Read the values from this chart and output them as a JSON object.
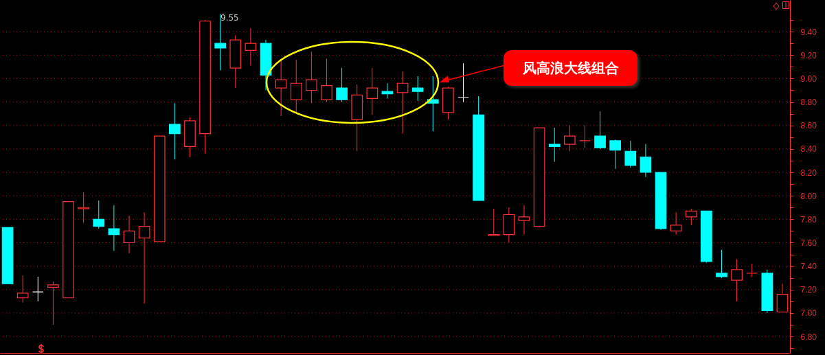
{
  "chart_data": {
    "type": "candlestick",
    "categories": [
      null,
      null,
      null,
      null,
      null,
      null,
      null,
      null,
      null,
      null,
      null,
      null,
      null,
      null,
      null,
      null,
      null,
      null,
      null,
      null,
      null,
      null,
      null,
      null,
      null,
      null,
      null,
      null,
      null,
      null,
      null,
      null,
      null,
      null,
      null,
      null,
      null,
      null,
      null,
      null,
      null,
      null,
      null,
      null,
      null,
      null,
      null,
      null,
      null,
      null,
      null,
      null
    ],
    "ohlc": [
      [
        7.73,
        7.73,
        7.25,
        7.25
      ],
      [
        7.13,
        7.32,
        7.09,
        7.17
      ],
      [
        7.18,
        7.31,
        7.1,
        7.18
      ],
      [
        7.22,
        7.27,
        6.9,
        7.24
      ],
      [
        7.13,
        7.95,
        7.13,
        7.95
      ],
      [
        7.89,
        8.03,
        7.77,
        7.9
      ],
      [
        7.8,
        7.96,
        7.72,
        7.74
      ],
      [
        7.72,
        7.92,
        7.53,
        7.67
      ],
      [
        7.6,
        7.83,
        7.51,
        7.7
      ],
      [
        7.64,
        7.86,
        7.08,
        7.74
      ],
      [
        7.61,
        8.51,
        7.61,
        8.51
      ],
      [
        8.61,
        8.79,
        8.31,
        8.53
      ],
      [
        8.42,
        8.67,
        8.33,
        8.64
      ],
      [
        8.53,
        9.5,
        8.36,
        9.49
      ],
      [
        9.3,
        9.55,
        9.07,
        9.26
      ],
      [
        9.09,
        9.37,
        8.92,
        9.33
      ],
      [
        9.24,
        9.43,
        9.11,
        9.3
      ],
      [
        9.3,
        9.33,
        8.9,
        9.03
      ],
      [
        8.92,
        9.16,
        8.68,
        8.99
      ],
      [
        8.82,
        9.16,
        8.71,
        8.96
      ],
      [
        8.9,
        9.23,
        8.79,
        8.99
      ],
      [
        8.82,
        9.17,
        8.8,
        8.94
      ],
      [
        8.92,
        9.09,
        8.8,
        8.82
      ],
      [
        8.65,
        8.95,
        8.38,
        8.86
      ],
      [
        8.83,
        9.09,
        8.69,
        8.92
      ],
      [
        8.89,
        8.96,
        8.83,
        8.87
      ],
      [
        8.88,
        9.06,
        8.53,
        8.96
      ],
      [
        8.92,
        9.02,
        8.81,
        8.89
      ],
      [
        8.82,
        9.02,
        8.55,
        8.79
      ],
      [
        8.71,
        8.93,
        8.65,
        8.92
      ],
      [
        8.84,
        9.13,
        8.8,
        8.84
      ],
      [
        8.69,
        8.85,
        7.96,
        7.96
      ],
      [
        7.66,
        7.89,
        7.66,
        7.67
      ],
      [
        7.67,
        7.9,
        7.6,
        7.84
      ],
      [
        7.79,
        7.92,
        7.67,
        7.82
      ],
      [
        7.74,
        8.58,
        7.73,
        8.58
      ],
      [
        8.44,
        8.58,
        8.29,
        8.42
      ],
      [
        8.44,
        8.6,
        8.38,
        8.51
      ],
      [
        8.47,
        8.6,
        8.41,
        8.47
      ],
      [
        8.51,
        8.72,
        8.4,
        8.41
      ],
      [
        8.47,
        8.48,
        8.23,
        8.39
      ],
      [
        8.38,
        8.47,
        8.24,
        8.26
      ],
      [
        8.33,
        8.44,
        8.16,
        8.2
      ],
      [
        8.2,
        8.2,
        7.71,
        7.72
      ],
      [
        7.7,
        7.86,
        7.67,
        7.75
      ],
      [
        7.82,
        7.89,
        7.75,
        7.87
      ],
      [
        7.87,
        7.87,
        7.43,
        7.44
      ],
      [
        7.34,
        7.54,
        7.3,
        7.31
      ],
      [
        7.28,
        7.46,
        7.1,
        7.37
      ],
      [
        7.34,
        7.42,
        7.31,
        7.34
      ],
      [
        7.34,
        7.37,
        7.0,
        7.02
      ],
      [
        7.01,
        7.25,
        7.01,
        7.16
      ]
    ],
    "colors": [
      "#00ffff",
      "#ff3232",
      "#ffffff",
      "#ff3232",
      "#ff3232",
      "#ff3232",
      "#00ffff",
      "#00ffff",
      "#ff3232",
      "#ff3232",
      "#ff3232",
      "#00ffff",
      "#ff3232",
      "#ff3232",
      "#00ffff",
      "#ff3232",
      "#ff3232",
      "#00ffff",
      "#ff3232",
      "#ff3232",
      "#ff3232",
      "#ff3232",
      "#00ffff",
      "#ff3232",
      "#ff3232",
      "#00ffff",
      "#ff3232",
      "#00ffff",
      "#00ffff",
      "#ff3232",
      "#ffffff",
      "#00ffff",
      "#ff3232",
      "#ff3232",
      "#ff3232",
      "#ff3232",
      "#00ffff",
      "#ff3232",
      "#ff3232",
      "#00ffff",
      "#00ffff",
      "#00ffff",
      "#00ffff",
      "#00ffff",
      "#ff3232",
      "#ff3232",
      "#00ffff",
      "#00ffff",
      "#ff3232",
      "#ff3232",
      "#00ffff",
      "#ff3232"
    ],
    "ylim": [
      6.66,
      9.67
    ],
    "yticks": [
      {
        "value": 6.7,
        "label": null
      },
      {
        "value": 6.8,
        "label": "6.80"
      },
      {
        "value": 6.9,
        "label": null
      },
      {
        "value": 7,
        "label": "7.00"
      },
      {
        "value": 7.1,
        "label": null
      },
      {
        "value": 7.2,
        "label": "7.20"
      },
      {
        "value": 7.3,
        "label": null
      },
      {
        "value": 7.4,
        "label": "7.40"
      },
      {
        "value": 7.5,
        "label": null
      },
      {
        "value": 7.6,
        "label": "7.60"
      },
      {
        "value": 7.7,
        "label": null
      },
      {
        "value": 7.8,
        "label": "7.80"
      },
      {
        "value": 7.9,
        "label": null
      },
      {
        "value": 8,
        "label": "8.00"
      },
      {
        "value": 8.1,
        "label": null
      },
      {
        "value": 8.2,
        "label": "8.20"
      },
      {
        "value": 8.3,
        "label": null
      },
      {
        "value": 8.4,
        "label": "8.40"
      },
      {
        "value": 8.5,
        "label": null
      },
      {
        "value": 8.6,
        "label": "8.60"
      },
      {
        "value": 8.7,
        "label": null
      },
      {
        "value": 8.8,
        "label": "8.80"
      },
      {
        "value": 8.9,
        "label": null
      },
      {
        "value": 9,
        "label": "9.00"
      },
      {
        "value": 9.1,
        "label": null
      },
      {
        "value": 9.2,
        "label": "9.20"
      },
      {
        "value": 9.3,
        "label": null
      },
      {
        "value": 9.4,
        "label": "9.40"
      },
      {
        "value": 9.5,
        "label": null
      }
    ],
    "grid": "y",
    "tick_labels": "y",
    "annotations": [
      "9.55",
      "风高浪大线组合"
    ]
  }
}
